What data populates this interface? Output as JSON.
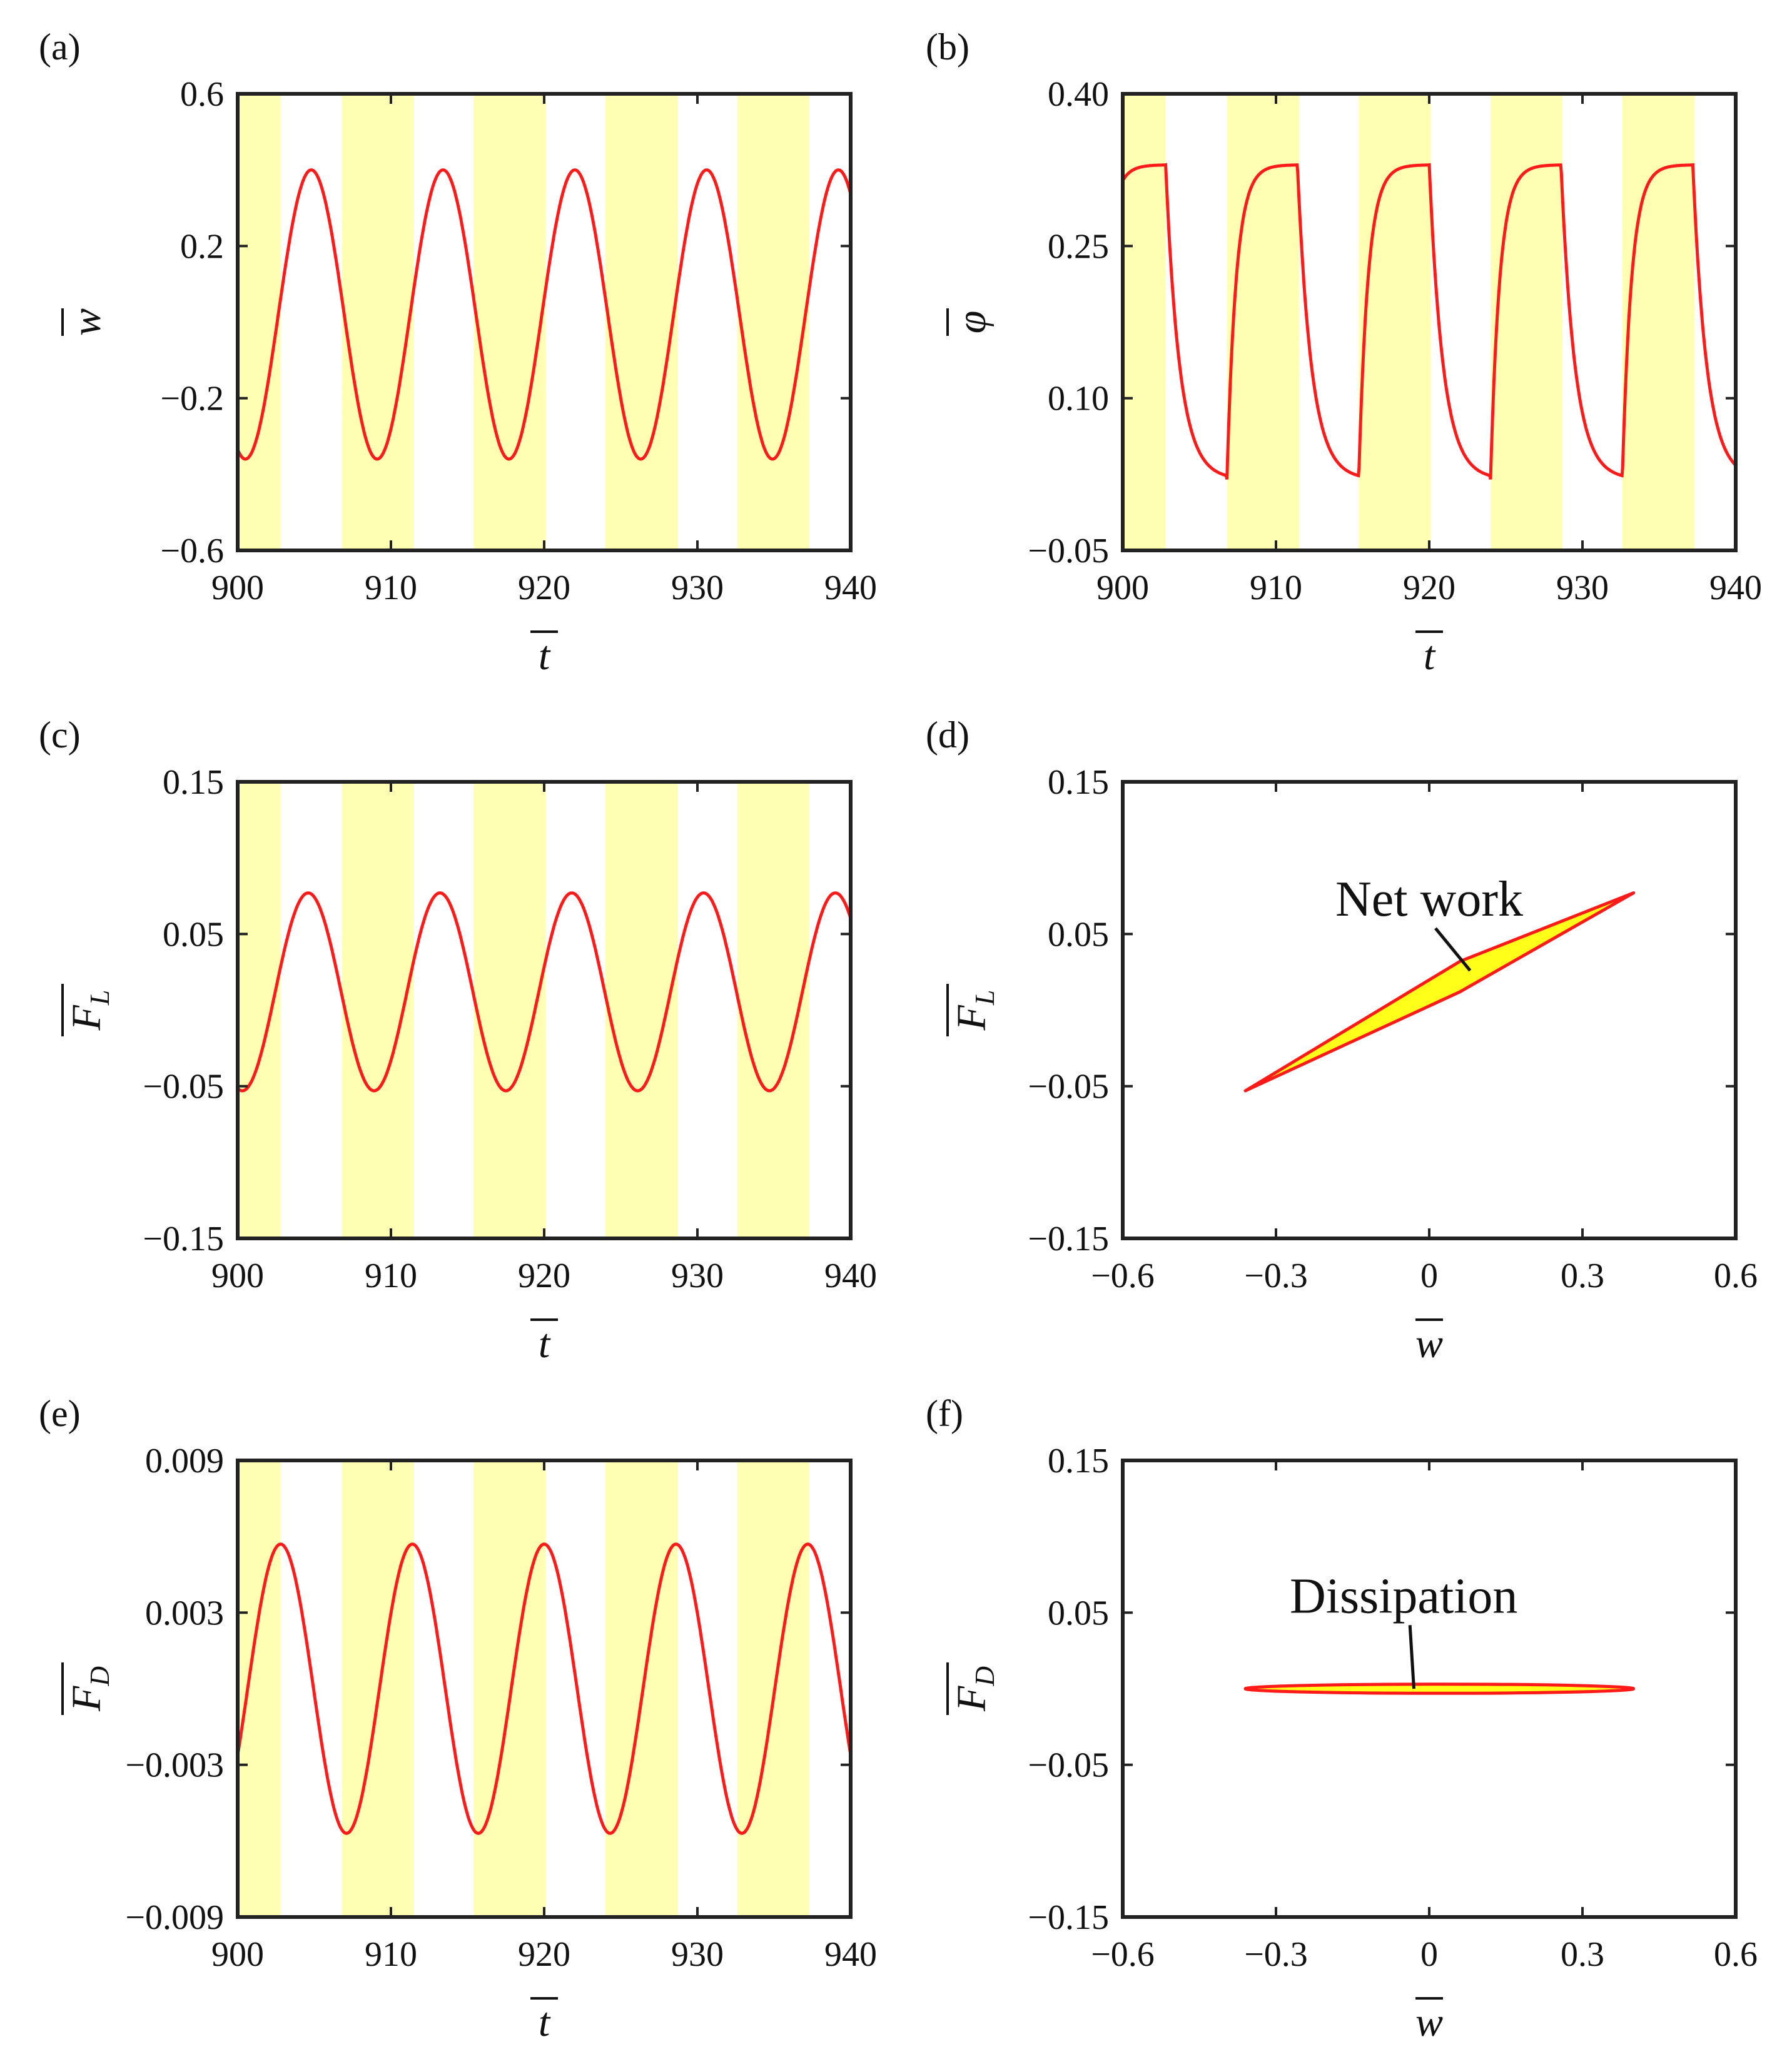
{
  "figure": {
    "colors": {
      "band": "#ffffb3",
      "curve": "#ff1a1a",
      "curve_alt": "#ff6a1a",
      "loop_fill": "#ffff1a",
      "frame": "#222222"
    },
    "panels": [
      {
        "label": "(a)",
        "ylabel": "w",
        "xlabel": "t"
      },
      {
        "label": "(b)",
        "ylabel": "φ",
        "xlabel": "t"
      },
      {
        "label": "(c)",
        "ylabel": "F",
        "ylabel_sub": "L",
        "xlabel": "t"
      },
      {
        "label": "(d)",
        "ylabel": "F",
        "ylabel_sub": "L",
        "xlabel": "w",
        "annotation": "Net work"
      },
      {
        "label": "(e)",
        "ylabel": "F",
        "ylabel_sub": "D",
        "xlabel": "t"
      },
      {
        "label": "(f)",
        "ylabel": "F",
        "ylabel_sub": "D",
        "xlabel": "w",
        "annotation": "Dissipation"
      }
    ]
  },
  "chart_data": [
    {
      "id": "a",
      "type": "line",
      "title": "(a)",
      "xlabel": "t",
      "ylabel": "w",
      "xlim": [
        900,
        940
      ],
      "ylim": [
        -0.6,
        0.6
      ],
      "xticks": [
        "900",
        "910",
        "920",
        "930",
        "940"
      ],
      "yticks": [
        "0.6",
        "0.2",
        "−0.2",
        "−0.6"
      ],
      "ytick_values": [
        0.6,
        0.2,
        -0.2,
        -0.6
      ],
      "shaded_bands": [
        [
          900,
          902.8
        ],
        [
          906.8,
          911.5
        ],
        [
          915.4,
          920.1
        ],
        [
          924.0,
          928.7
        ],
        [
          932.6,
          937.3
        ]
      ],
      "series": [
        {
          "name": "w",
          "form": "sine",
          "period": 8.6,
          "peak_at": 904.8,
          "min": -0.36,
          "max": 0.4
        }
      ]
    },
    {
      "id": "b",
      "type": "line",
      "title": "(b)",
      "xlabel": "t",
      "ylabel": "φ",
      "xlim": [
        900,
        940
      ],
      "ylim": [
        -0.05,
        0.4
      ],
      "xticks": [
        "900",
        "910",
        "920",
        "930",
        "940"
      ],
      "yticks": [
        "0.40",
        "0.25",
        "0.10",
        "−0.05"
      ],
      "ytick_values": [
        0.4,
        0.25,
        0.1,
        -0.05
      ],
      "shaded_bands": [
        [
          900,
          902.8
        ],
        [
          906.8,
          911.5
        ],
        [
          915.4,
          920.1
        ],
        [
          924.0,
          928.7
        ],
        [
          932.6,
          937.3
        ]
      ],
      "series": [
        {
          "name": "φ",
          "form": "relaxation",
          "period": 8.6,
          "rise_at": 906.8,
          "fall_at": 902.8,
          "min": 0.02,
          "max": 0.33,
          "rise_tau": 0.6,
          "fall_tau": 0.9
        }
      ]
    },
    {
      "id": "c",
      "type": "line",
      "title": "(c)",
      "xlabel": "t",
      "ylabel": "F_L",
      "xlim": [
        900,
        940
      ],
      "ylim": [
        -0.15,
        0.15
      ],
      "xticks": [
        "900",
        "910",
        "920",
        "930",
        "940"
      ],
      "yticks": [
        "0.15",
        "0.05",
        "−0.05",
        "−0.15"
      ],
      "ytick_values": [
        0.15,
        0.05,
        -0.05,
        -0.15
      ],
      "shaded_bands": [
        [
          900,
          902.8
        ],
        [
          906.8,
          911.5
        ],
        [
          915.4,
          920.1
        ],
        [
          924.0,
          928.7
        ],
        [
          932.6,
          937.3
        ]
      ],
      "series": [
        {
          "name": "F_L",
          "form": "sine",
          "period": 8.6,
          "peak_at": 904.6,
          "min": -0.053,
          "max": 0.077
        }
      ]
    },
    {
      "id": "d",
      "type": "line",
      "title": "(d)",
      "xlabel": "w",
      "ylabel": "F_L",
      "xlim": [
        -0.6,
        0.6
      ],
      "ylim": [
        -0.15,
        0.15
      ],
      "xticks": [
        "−0.6",
        "−0.3",
        "0",
        "0.3",
        "0.6"
      ],
      "xtick_values": [
        -0.6,
        -0.3,
        0,
        0.3,
        0.6
      ],
      "yticks": [
        "0.15",
        "0.05",
        "−0.05",
        "−0.15"
      ],
      "ytick_values": [
        0.15,
        0.05,
        -0.05,
        -0.15
      ],
      "loop": [
        [
          -0.36,
          -0.053
        ],
        [
          0.06,
          0.032
        ],
        [
          0.4,
          0.077
        ],
        [
          0.06,
          0.012
        ],
        [
          -0.36,
          -0.053
        ]
      ],
      "annotation": {
        "text": "Net work",
        "at": [
          0.0,
          0.062
        ],
        "points_to": [
          0.08,
          0.026
        ]
      }
    },
    {
      "id": "e",
      "type": "line",
      "title": "(e)",
      "xlabel": "t",
      "ylabel": "F_D",
      "xlim": [
        900,
        940
      ],
      "ylim": [
        -0.009,
        0.009
      ],
      "xticks": [
        "900",
        "910",
        "920",
        "930",
        "940"
      ],
      "yticks": [
        "0.009",
        "0.003",
        "−0.003",
        "−0.009"
      ],
      "ytick_values": [
        0.009,
        0.003,
        -0.003,
        -0.009
      ],
      "shaded_bands": [
        [
          900,
          902.8
        ],
        [
          906.8,
          911.5
        ],
        [
          915.4,
          920.1
        ],
        [
          924.0,
          928.7
        ],
        [
          932.6,
          937.3
        ]
      ],
      "series": [
        {
          "name": "F_D",
          "form": "sine",
          "period": 8.6,
          "peak_at": 902.8,
          "min": -0.0057,
          "max": 0.0057
        }
      ]
    },
    {
      "id": "f",
      "type": "line",
      "title": "(f)",
      "xlabel": "w",
      "ylabel": "F_D",
      "xlim": [
        -0.6,
        0.6
      ],
      "ylim": [
        -0.15,
        0.15
      ],
      "xticks": [
        "−0.6",
        "−0.3",
        "0",
        "0.3",
        "0.6"
      ],
      "xtick_values": [
        -0.6,
        -0.3,
        0,
        0.3,
        0.6
      ],
      "yticks": [
        "0.15",
        "0.05",
        "−0.05",
        "−0.15"
      ],
      "ytick_values": [
        0.15,
        0.05,
        -0.05,
        -0.15
      ],
      "ellipse": {
        "cx": 0.02,
        "cy": 0.0,
        "rx": 0.38,
        "ry": 0.003
      },
      "annotation": {
        "text": "Dissipation",
        "at": [
          -0.05,
          0.05
        ],
        "points_to": [
          -0.03,
          0.0
        ]
      }
    }
  ]
}
